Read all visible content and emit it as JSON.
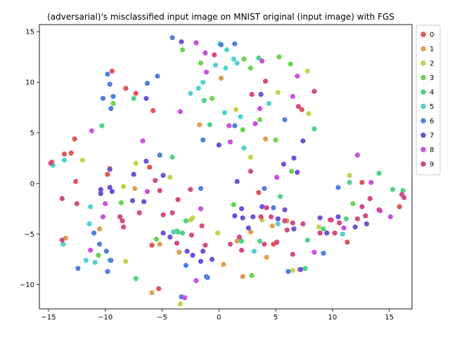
{
  "chart_data": {
    "type": "scatter",
    "title": "(adversarial)'s misclassified input image on MNIST original (input image) with FGS",
    "xlabel": "",
    "ylabel": "",
    "xlim": [
      -15.8,
      17.0
    ],
    "ylim": [
      -12.4,
      15.7
    ],
    "xticks": [
      -15,
      -10,
      -5,
      0,
      5,
      10,
      15
    ],
    "yticks": [
      -10,
      -5,
      0,
      5,
      10,
      15
    ],
    "grid": false,
    "legend_position": "outside-right",
    "series": [
      {
        "name": "0",
        "color": "#e05555",
        "points": [
          [
            -14.7,
            2.1
          ],
          [
            -13.6,
            2.9
          ],
          [
            -13.0,
            3.0
          ],
          [
            -12.7,
            4.4
          ],
          [
            -12.6,
            0.2
          ],
          [
            -9.8,
            0.9
          ],
          [
            -9.4,
            11.1
          ],
          [
            -8.2,
            9.4
          ],
          [
            -7.3,
            8.9
          ],
          [
            -6.1,
            1.6
          ],
          [
            -5.8,
            7.2
          ],
          [
            -5.9,
            -6.1
          ],
          [
            -5.3,
            -10.4
          ],
          [
            3.5,
            -0.9
          ],
          [
            4.8,
            -6.0
          ],
          [
            7.3,
            7.3
          ],
          [
            9.8,
            -3.6
          ],
          [
            11.3,
            -5.8
          ],
          [
            12.6,
            0.1
          ],
          [
            15.9,
            -2.3
          ]
        ]
      },
      {
        "name": "1",
        "color": "#e0a050",
        "points": [
          [
            -13.5,
            -5.4
          ],
          [
            -10.5,
            -4.5
          ],
          [
            -9.6,
            1.5
          ],
          [
            -7.4,
            -0.5
          ],
          [
            -5.9,
            -10.8
          ],
          [
            -5.2,
            -6.0
          ],
          [
            -3.5,
            -6.8
          ],
          [
            -1.7,
            5.8
          ],
          [
            0.2,
            10.4
          ],
          [
            0.4,
            -8.0
          ],
          [
            1.6,
            -5.7
          ],
          [
            2.1,
            -9.2
          ],
          [
            2.8,
            -4.8
          ],
          [
            4.1,
            4.4
          ],
          [
            4.2,
            -7.3
          ],
          [
            4.7,
            -4.2
          ],
          [
            6.0,
            -3.7
          ],
          [
            7.1,
            -8.5
          ]
        ]
      },
      {
        "name": "2",
        "color": "#c5d250",
        "points": [
          [
            -12.0,
            2.3
          ],
          [
            -8.4,
            -0.3
          ],
          [
            -8.2,
            -7.7
          ],
          [
            -7.3,
            2.0
          ],
          [
            -4.3,
            0.6
          ],
          [
            -3.4,
            -11.9
          ],
          [
            -2.5,
            -3.6
          ],
          [
            -2.3,
            -3.4
          ],
          [
            -0.1,
            -4.9
          ],
          [
            1.5,
            7.3
          ],
          [
            2.8,
            2.6
          ],
          [
            3.8,
            -3.6
          ],
          [
            5.2,
            9.0
          ],
          [
            6.5,
            -8.6
          ],
          [
            7.8,
            11.1
          ],
          [
            7.9,
            6.9
          ],
          [
            8.8,
            -4.3
          ],
          [
            11.5,
            0.8
          ]
        ]
      },
      {
        "name": "3",
        "color": "#6cd255",
        "points": [
          [
            -10.6,
            -7.1
          ],
          [
            -9.3,
            7.9
          ],
          [
            -8.6,
            -1.9
          ],
          [
            -5.5,
            -5.5
          ],
          [
            -3.7,
            -4.7
          ],
          [
            -3.2,
            13.2
          ],
          [
            -1.6,
            11.9
          ],
          [
            -0.6,
            8.4
          ],
          [
            1.3,
            -2.1
          ],
          [
            2.1,
            5.3
          ],
          [
            2.2,
            12.3
          ],
          [
            2.8,
            11.4
          ],
          [
            2.9,
            -9.1
          ],
          [
            3.6,
            6.3
          ],
          [
            5.0,
            4.3
          ],
          [
            5.3,
            12.5
          ],
          [
            6.3,
            11.8
          ],
          [
            6.4,
            1.2
          ],
          [
            11.8,
            -2.0
          ]
        ]
      },
      {
        "name": "4",
        "color": "#50d28a",
        "points": [
          [
            -10.3,
            5.7
          ],
          [
            -7.5,
            8.4
          ],
          [
            -7.3,
            -9.4
          ],
          [
            -4.1,
            2.6
          ],
          [
            -3.6,
            -4.8
          ],
          [
            -3.2,
            -4.9
          ],
          [
            -2.9,
            -3.7
          ],
          [
            -1.3,
            8.2
          ],
          [
            -0.8,
            5.8
          ],
          [
            2.0,
            -5.7
          ],
          [
            3.5,
            12.4
          ],
          [
            3.6,
            -5.7
          ],
          [
            5.4,
            -1.3
          ],
          [
            7.8,
            -5.6
          ],
          [
            8.4,
            5.4
          ],
          [
            9.2,
            -4.5
          ],
          [
            11.2,
            -3.5
          ],
          [
            11.5,
            0.1
          ],
          [
            14.1,
            1.0
          ],
          [
            15.3,
            -0.6
          ],
          [
            16.2,
            -0.7
          ],
          [
            7.6,
            -8.4
          ]
        ]
      },
      {
        "name": "5",
        "color": "#50d2d2",
        "points": [
          [
            -14.6,
            1.8
          ],
          [
            -13.7,
            -6.0
          ],
          [
            -13.6,
            2.3
          ],
          [
            -11.4,
            -4.0
          ],
          [
            -11.3,
            -2.3
          ],
          [
            -11.7,
            -7.6
          ],
          [
            -10.9,
            -7.8
          ],
          [
            -9.6,
            -7.6
          ],
          [
            -4.0,
            -4.8
          ],
          [
            -2.5,
            8.9
          ],
          [
            -1.8,
            9.4
          ],
          [
            -1.4,
            10.0
          ],
          [
            -0.3,
            11.7
          ],
          [
            0.1,
            13.8
          ],
          [
            0.5,
            7.0
          ],
          [
            0.6,
            11.4
          ],
          [
            0.7,
            13.2
          ],
          [
            1.3,
            12.3
          ],
          [
            1.6,
            11.9
          ],
          [
            1.9,
            6.6
          ],
          [
            2.2,
            3.5
          ],
          [
            3.1,
            -6.7
          ],
          [
            4.4,
            7.9
          ],
          [
            5.2,
            -4.0
          ],
          [
            10.9,
            -5.0
          ]
        ]
      },
      {
        "name": "6",
        "color": "#5080e0",
        "points": [
          [
            -12.4,
            -8.4
          ],
          [
            -11.0,
            -4.9
          ],
          [
            -10.5,
            -6.0
          ],
          [
            -9.9,
            -6.7
          ],
          [
            -9.8,
            -8.7
          ],
          [
            -9.5,
            -7.6
          ],
          [
            -9.8,
            10.8
          ],
          [
            -9.6,
            9.8
          ],
          [
            -10.2,
            8.4
          ],
          [
            -9.5,
            7.4
          ],
          [
            -9.3,
            8.6
          ],
          [
            -6.3,
            9.9
          ],
          [
            -4.1,
            14.4
          ],
          [
            -5.4,
            10.6
          ],
          [
            -5.2,
            2.8
          ],
          [
            -3.3,
            -11.2
          ],
          [
            -2.9,
            -8.1
          ],
          [
            -1.6,
            -0.5
          ],
          [
            -1.4,
            4.3
          ],
          [
            -1.1,
            -9.2
          ],
          [
            -1.0,
            -9.3
          ],
          [
            0.2,
            13.7
          ],
          [
            1.4,
            13.8
          ],
          [
            1.4,
            5.7
          ],
          [
            4.0,
            -0.5
          ],
          [
            4.8,
            -2.4
          ],
          [
            5.8,
            6.3
          ],
          [
            6.1,
            -8.7
          ],
          [
            9.2,
            -6.9
          ],
          [
            10.5,
            -0.4
          ]
        ]
      },
      {
        "name": "7",
        "color": "#7050d8",
        "points": [
          [
            -10.4,
            -0.6
          ],
          [
            -10.4,
            -1.0
          ],
          [
            -9.6,
            -0.4
          ],
          [
            -9.4,
            -0.8
          ],
          [
            -9.6,
            1.4
          ],
          [
            -7.6,
            -1.7
          ],
          [
            -7.5,
            0.9
          ],
          [
            -6.6,
            -1.8
          ],
          [
            -6.4,
            2.2
          ],
          [
            -6.4,
            8.4
          ],
          [
            -4.9,
            -4.9
          ],
          [
            -4.9,
            0.8
          ],
          [
            -4.3,
            -5.3
          ],
          [
            -3.3,
            14.0
          ],
          [
            -2.3,
            -7.1
          ],
          [
            -2.8,
            -6.7
          ],
          [
            -1.6,
            -7.7
          ],
          [
            -1.4,
            -6.7
          ],
          [
            -0.6,
            -7.5
          ],
          [
            0.0,
            3.8
          ],
          [
            1.6,
            0.2
          ],
          [
            1.4,
            -3.2
          ],
          [
            2.0,
            -2.5
          ],
          [
            2.1,
            -3.4
          ],
          [
            2.6,
            -4.4
          ],
          [
            3.0,
            -3.3
          ],
          [
            3.7,
            8.8
          ],
          [
            3.8,
            -2.3
          ],
          [
            5.2,
            -3.5
          ],
          [
            5.7,
            1.9
          ],
          [
            5.8,
            -2.6
          ],
          [
            6.6,
            2.5
          ],
          [
            6.9,
            1.1
          ],
          [
            7.4,
            4.2
          ],
          [
            6.6,
            -4.5
          ],
          [
            7.2,
            -8.5
          ],
          [
            8.9,
            -3.4
          ],
          [
            9.5,
            -4.9
          ],
          [
            10.5,
            -3.3
          ],
          [
            12.0,
            -4.3
          ],
          [
            13.0,
            -4.0
          ]
        ]
      },
      {
        "name": "8",
        "color": "#cc50e0",
        "points": [
          [
            -11.2,
            5.2
          ],
          [
            -11.3,
            -6.6
          ],
          [
            -10.2,
            -3.3
          ],
          [
            -10.0,
            -2.0
          ],
          [
            -6.7,
            4.2
          ],
          [
            -6.3,
            -0.8
          ],
          [
            -3.4,
            7.1
          ],
          [
            -3.0,
            -11.3
          ],
          [
            -2.0,
            -9.6
          ],
          [
            -2.0,
            13.9
          ],
          [
            -1.6,
            -2.5
          ],
          [
            -1.2,
            12.9
          ],
          [
            -1.1,
            11.0
          ],
          [
            0.9,
            5.7
          ],
          [
            1.0,
            4.1
          ],
          [
            3.2,
            5.9
          ],
          [
            3.6,
            7.4
          ],
          [
            3.8,
            12.1
          ],
          [
            5.1,
            0.6
          ],
          [
            6.5,
            8.6
          ],
          [
            6.9,
            10.6
          ],
          [
            8.4,
            -6.8
          ],
          [
            11.0,
            -4.4
          ],
          [
            12.2,
            2.8
          ],
          [
            13.4,
            0.1
          ],
          [
            14.2,
            -2.7
          ],
          [
            15.1,
            -3.3
          ]
        ]
      },
      {
        "name": "9",
        "color": "#d54a85",
        "points": [
          [
            -14.8,
            2.0
          ],
          [
            -13.8,
            -1.5
          ],
          [
            -13.8,
            -5.6
          ],
          [
            -12.5,
            -2.0
          ],
          [
            -8.7,
            -3.3
          ],
          [
            -8.4,
            -4.3
          ],
          [
            -8.5,
            -3.7
          ],
          [
            -7.0,
            -2.9
          ],
          [
            -5.6,
            0.3
          ],
          [
            -4.9,
            -3.1
          ],
          [
            -5.2,
            -0.7
          ],
          [
            -4.1,
            -2.9
          ],
          [
            -3.7,
            -5.9
          ],
          [
            -3.6,
            -1.6
          ],
          [
            -2.5,
            -0.6
          ],
          [
            -2.4,
            -5.1
          ],
          [
            -1.5,
            -4.2
          ],
          [
            -1.2,
            -6.1
          ],
          [
            -0.4,
            12.7
          ],
          [
            1.0,
            -6.0
          ],
          [
            1.8,
            -5.3
          ],
          [
            2.0,
            -6.6
          ],
          [
            2.8,
            1.2
          ],
          [
            2.9,
            8.8
          ],
          [
            3.7,
            -3.3
          ],
          [
            4.0,
            -6.0
          ],
          [
            4.1,
            10.1
          ],
          [
            4.2,
            -2.4
          ],
          [
            4.6,
            -3.3
          ],
          [
            5.1,
            -5.8
          ],
          [
            5.8,
            -3.7
          ],
          [
            6.0,
            -4.6
          ],
          [
            6.5,
            -3.9
          ],
          [
            6.5,
            -7.0
          ],
          [
            7.0,
            7.6
          ],
          [
            7.4,
            -4.0
          ],
          [
            8.4,
            9.1
          ],
          [
            8.9,
            -4.9
          ],
          [
            9.9,
            -3.6
          ],
          [
            10.2,
            -4.9
          ],
          [
            10.6,
            -3.9
          ],
          [
            12.2,
            -3.5
          ],
          [
            12.6,
            -2.3
          ],
          [
            12.9,
            -3.2
          ],
          [
            13.3,
            -1.5
          ],
          [
            14.1,
            -2.6
          ],
          [
            16.1,
            -1.1
          ],
          [
            16.3,
            -1.4
          ]
        ]
      }
    ]
  }
}
